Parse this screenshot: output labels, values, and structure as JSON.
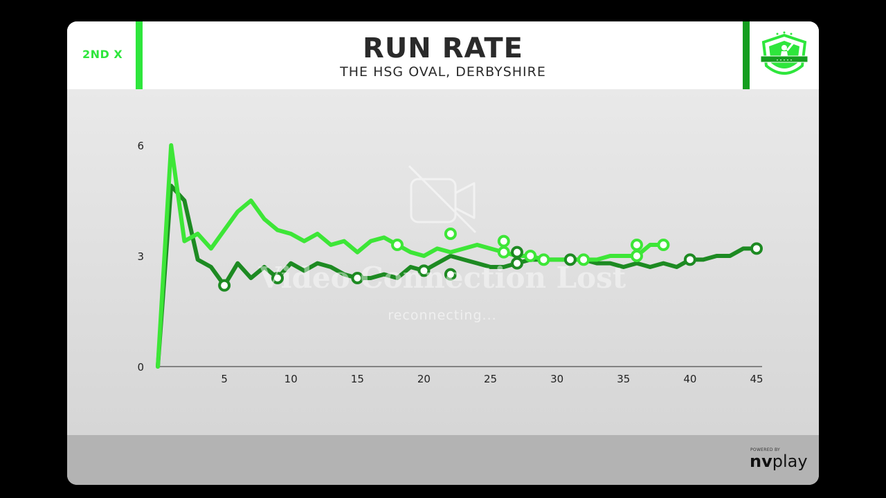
{
  "header": {
    "team_label": "2ND X",
    "title": "RUN RATE",
    "subtitle": "THE HSG OVAL, DERBYSHIRE",
    "accent_left": "#2ee63c",
    "accent_right": "#159e1f"
  },
  "overlay": {
    "title": "Video Connection Lost",
    "message": "reconnecting..."
  },
  "footer": {
    "powered_by": "POWERED BY",
    "brand_nv": "nv",
    "brand_play": "play"
  },
  "chart_data": {
    "type": "line",
    "x_ticks": [
      5,
      10,
      15,
      20,
      25,
      30,
      35,
      40,
      45
    ],
    "y_ticks": [
      0,
      3,
      6
    ],
    "xlim": [
      0,
      45
    ],
    "ylim": [
      0,
      6
    ],
    "grid": false,
    "series": [
      {
        "color": "#3de637",
        "points": [
          [
            0,
            0
          ],
          [
            1,
            6.0
          ],
          [
            2,
            3.4
          ],
          [
            3,
            3.6
          ],
          [
            4,
            3.2
          ],
          [
            5,
            3.7
          ],
          [
            6,
            4.2
          ],
          [
            7,
            4.5
          ],
          [
            8,
            4.0
          ],
          [
            9,
            3.7
          ],
          [
            10,
            3.6
          ],
          [
            11,
            3.4
          ],
          [
            12,
            3.6
          ],
          [
            13,
            3.3
          ],
          [
            14,
            3.4
          ],
          [
            15,
            3.1
          ],
          [
            16,
            3.4
          ],
          [
            17,
            3.5
          ],
          [
            18,
            3.3
          ],
          [
            19,
            3.1
          ],
          [
            20,
            3.0
          ],
          [
            21,
            3.2
          ],
          [
            22,
            3.1
          ],
          [
            23,
            3.2
          ],
          [
            24,
            3.3
          ],
          [
            25,
            3.2
          ],
          [
            26,
            3.1
          ],
          [
            27,
            3.0
          ],
          [
            28,
            3.0
          ],
          [
            29,
            2.9
          ],
          [
            30,
            2.9
          ],
          [
            31,
            2.9
          ],
          [
            32,
            2.9
          ],
          [
            33,
            2.9
          ],
          [
            34,
            3.0
          ],
          [
            35,
            3.0
          ],
          [
            36,
            3.0
          ],
          [
            37,
            3.3
          ],
          [
            38,
            3.3
          ]
        ],
        "wickets": [
          [
            18,
            3.3
          ],
          [
            22,
            3.6
          ],
          [
            26,
            3.4
          ],
          [
            26,
            3.1
          ],
          [
            28,
            3.0
          ],
          [
            29,
            2.9
          ],
          [
            32,
            2.9
          ],
          [
            36,
            3.0
          ],
          [
            36,
            3.3
          ],
          [
            38,
            3.3
          ]
        ]
      },
      {
        "color": "#1d8a22",
        "points": [
          [
            0,
            0
          ],
          [
            1,
            4.9
          ],
          [
            2,
            4.5
          ],
          [
            3,
            2.9
          ],
          [
            4,
            2.7
          ],
          [
            5,
            2.2
          ],
          [
            6,
            2.8
          ],
          [
            7,
            2.4
          ],
          [
            8,
            2.7
          ],
          [
            9,
            2.4
          ],
          [
            10,
            2.8
          ],
          [
            11,
            2.6
          ],
          [
            12,
            2.8
          ],
          [
            13,
            2.7
          ],
          [
            14,
            2.5
          ],
          [
            15,
            2.4
          ],
          [
            16,
            2.4
          ],
          [
            17,
            2.5
          ],
          [
            18,
            2.4
          ],
          [
            19,
            2.7
          ],
          [
            20,
            2.6
          ],
          [
            21,
            2.8
          ],
          [
            22,
            3.0
          ],
          [
            23,
            2.9
          ],
          [
            24,
            2.8
          ],
          [
            25,
            2.7
          ],
          [
            26,
            2.7
          ],
          [
            27,
            2.8
          ],
          [
            28,
            2.9
          ],
          [
            29,
            2.9
          ],
          [
            30,
            2.9
          ],
          [
            31,
            2.9
          ],
          [
            32,
            2.9
          ],
          [
            33,
            2.8
          ],
          [
            34,
            2.8
          ],
          [
            35,
            2.7
          ],
          [
            36,
            2.8
          ],
          [
            37,
            2.7
          ],
          [
            38,
            2.8
          ],
          [
            39,
            2.7
          ],
          [
            40,
            2.9
          ],
          [
            41,
            2.9
          ],
          [
            42,
            3.0
          ],
          [
            43,
            3.0
          ],
          [
            44,
            3.2
          ],
          [
            45,
            3.2
          ]
        ],
        "wickets": [
          [
            5,
            2.2
          ],
          [
            9,
            2.4
          ],
          [
            15,
            2.4
          ],
          [
            20,
            2.6
          ],
          [
            22,
            2.5
          ],
          [
            27,
            3.1
          ],
          [
            27,
            2.8
          ],
          [
            31,
            2.9
          ],
          [
            40,
            2.9
          ],
          [
            45,
            3.2
          ]
        ]
      }
    ]
  }
}
